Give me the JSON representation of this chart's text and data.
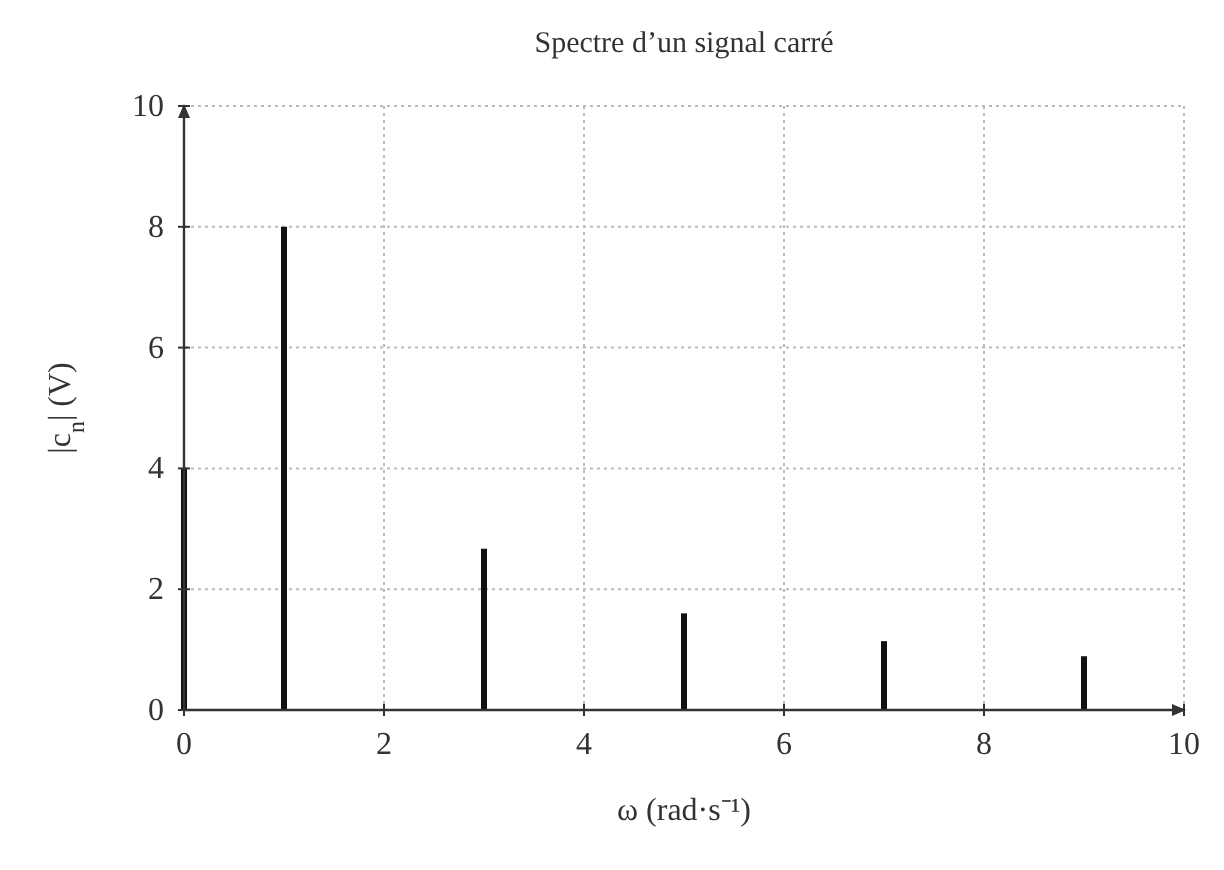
{
  "chart_data": {
    "type": "bar",
    "title": "Spectre d’un signal carré",
    "xlabel": "ω (rad·s⁻¹)",
    "ylabel": "|c$_{n}$| (V)",
    "x": [
      0,
      1,
      3,
      5,
      7,
      9
    ],
    "values": [
      4,
      8,
      2.67,
      1.6,
      1.14,
      0.89
    ],
    "color": "#111111",
    "xlim": [
      0,
      10
    ],
    "xticks": [
      0,
      2,
      4,
      6,
      8,
      10
    ],
    "ylim": [
      0,
      10
    ],
    "yticks": [
      0,
      2,
      4,
      6,
      8,
      10
    ],
    "grid": true
  }
}
